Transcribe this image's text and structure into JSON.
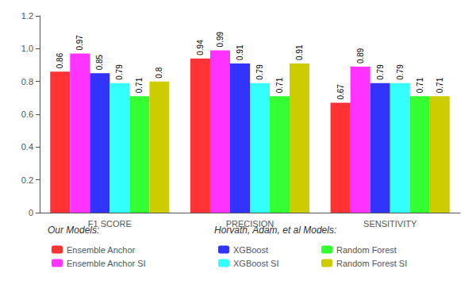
{
  "chart_data": {
    "type": "bar",
    "categories": [
      "F1 SCORE",
      "PRECISION",
      "SENSITIVITY"
    ],
    "series": [
      {
        "name": "Ensemble Anchor",
        "color": "#ff3333",
        "values": [
          0.86,
          0.94,
          0.67
        ]
      },
      {
        "name": "Ensemble Anchor SI",
        "color": "#ff33ff",
        "values": [
          0.97,
          0.99,
          0.89
        ]
      },
      {
        "name": "XGBoost",
        "color": "#3333ff",
        "values": [
          0.85,
          0.91,
          0.79
        ]
      },
      {
        "name": "XGBoost SI",
        "color": "#33ffff",
        "values": [
          0.79,
          0.79,
          0.79
        ]
      },
      {
        "name": "Random Forest",
        "color": "#33ff33",
        "values": [
          0.71,
          0.71,
          0.71
        ]
      },
      {
        "name": "Random Forest SI",
        "color": "#cccc00",
        "values": [
          0.8,
          0.91,
          0.71
        ]
      }
    ],
    "ylim": [
      0,
      1.2
    ],
    "yticks": [
      0,
      0.2,
      0.4,
      0.6,
      0.8,
      {
        "value": 1.0,
        "label": "1.0"
      },
      1.2
    ],
    "grid": false,
    "data_labels": true,
    "annotations": [
      "Our Models:",
      "Horvath, Adam, et al Models:"
    ]
  }
}
